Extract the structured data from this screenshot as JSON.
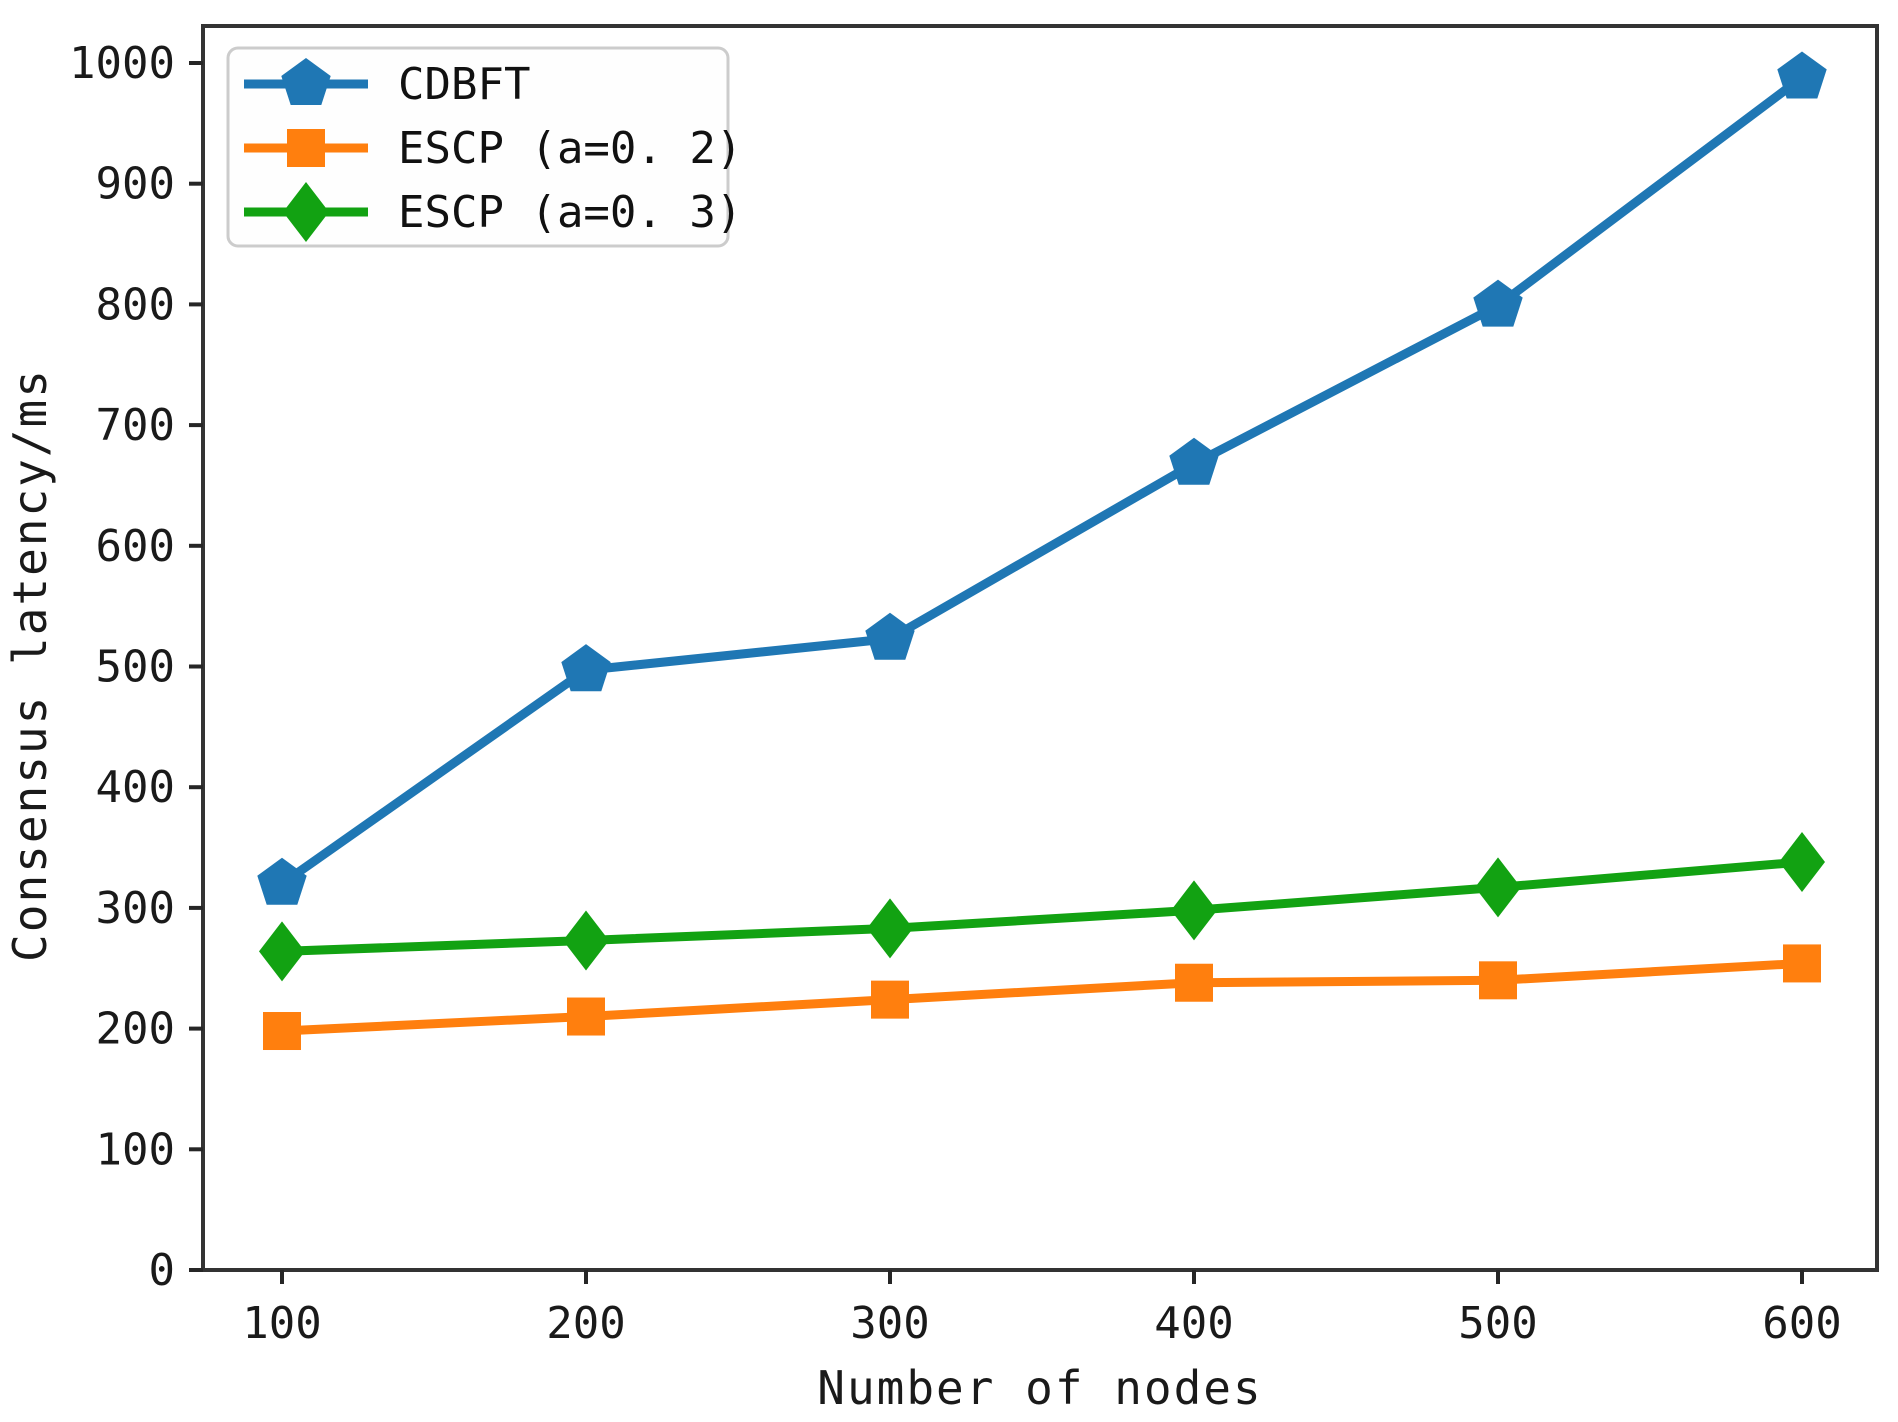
{
  "chart_data": {
    "type": "line",
    "title": "",
    "xlabel": "Number of nodes",
    "ylabel": "Consensus latency/ms",
    "x": [
      100,
      200,
      300,
      400,
      500,
      600
    ],
    "xticks": [
      100,
      200,
      300,
      400,
      500,
      600
    ],
    "yticks": [
      0,
      100,
      200,
      300,
      400,
      500,
      600,
      700,
      800,
      900,
      1000
    ],
    "xlim": [
      74,
      625
    ],
    "ylim": [
      0,
      1030
    ],
    "grid": false,
    "legend_position": "upper left",
    "series": [
      {
        "name": "CDBFT",
        "marker": "pentagon",
        "color": "#1f77b4",
        "values": [
          320,
          497,
          523,
          668,
          799,
          988
        ]
      },
      {
        "name": "ESCP (a=0. 2)",
        "marker": "square",
        "color": "#ff7f0e",
        "values": [
          198,
          210,
          224,
          238,
          240,
          254
        ]
      },
      {
        "name": "ESCP (a=0. 3)",
        "marker": "diamond",
        "color": "#12a212",
        "values": [
          264,
          273,
          283,
          298,
          317,
          338
        ]
      }
    ]
  },
  "figure": {
    "background": "#ffffff",
    "axis_color": "#333333",
    "tick_color": "#262626",
    "text_color": "#1a1a1a",
    "legend_border_color": "#cccccc",
    "legend_fill": "#fefefe"
  }
}
